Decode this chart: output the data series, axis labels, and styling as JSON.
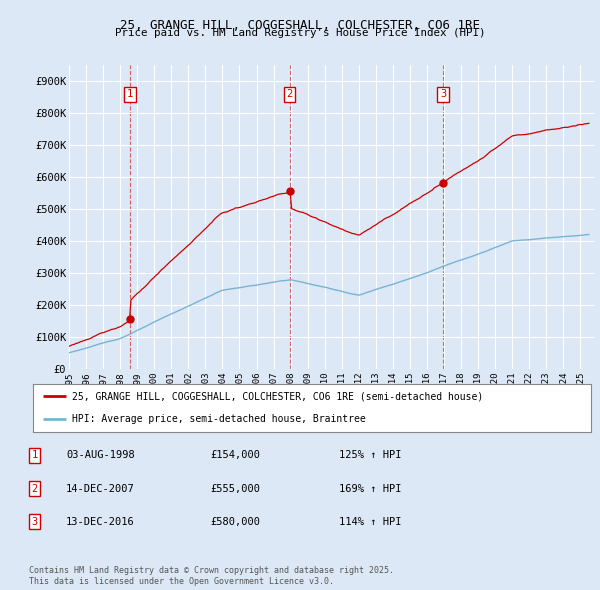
{
  "title_line1": "25, GRANGE HILL, COGGESHALL, COLCHESTER, CO6 1RE",
  "title_line2": "Price paid vs. HM Land Registry's House Price Index (HPI)",
  "bg_color": "#dce8f5",
  "plot_bg_color": "#dce8f5",
  "grid_color": "#ffffff",
  "red_line_color": "#cc0000",
  "blue_line_color": "#7ab3d4",
  "ylim_min": 0,
  "ylim_max": 950000,
  "yticks": [
    0,
    100000,
    200000,
    300000,
    400000,
    500000,
    600000,
    700000,
    800000,
    900000
  ],
  "ytick_labels": [
    "£0",
    "£100K",
    "£200K",
    "£300K",
    "£400K",
    "£500K",
    "£600K",
    "£700K",
    "£800K",
    "£900K"
  ],
  "sale_dates_year": [
    1998.58,
    2007.95,
    2016.95
  ],
  "sale_prices": [
    154000,
    555000,
    580000
  ],
  "sale_labels": [
    "1",
    "2",
    "3"
  ],
  "legend_line1": "25, GRANGE HILL, COGGESHALL, COLCHESTER, CO6 1RE (semi-detached house)",
  "legend_line2": "HPI: Average price, semi-detached house, Braintree",
  "table_data": [
    [
      "1",
      "03-AUG-1998",
      "£154,000",
      "125% ↑ HPI"
    ],
    [
      "2",
      "14-DEC-2007",
      "£555,000",
      "169% ↑ HPI"
    ],
    [
      "3",
      "13-DEC-2016",
      "£580,000",
      "114% ↑ HPI"
    ]
  ],
  "footer": "Contains HM Land Registry data © Crown copyright and database right 2025.\nThis data is licensed under the Open Government Licence v3.0."
}
